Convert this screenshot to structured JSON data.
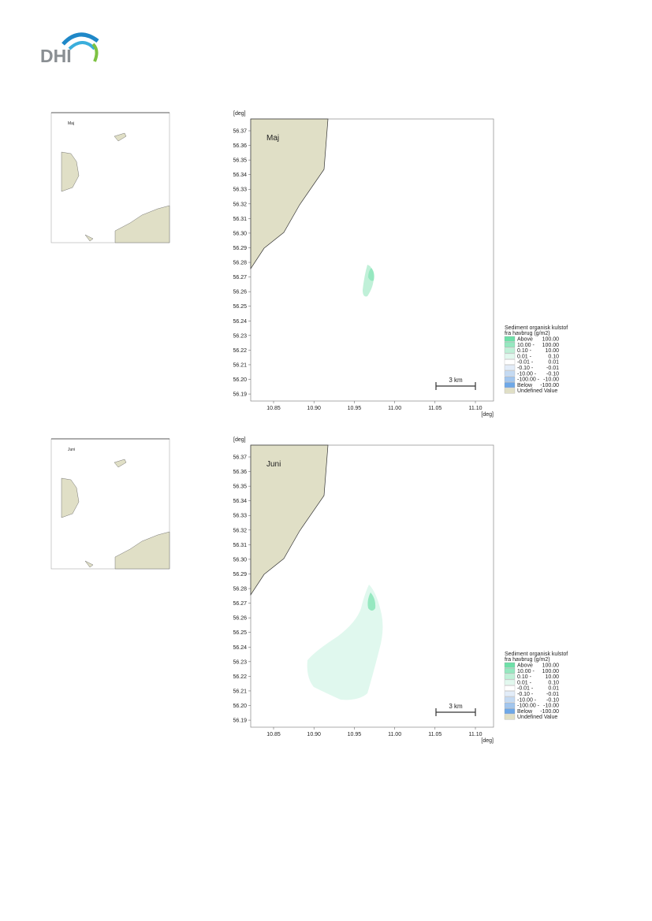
{
  "header": {
    "logo": "DHI"
  },
  "figures": [
    {
      "title": "Maj",
      "y_unit": "[deg]",
      "x_unit": "[deg]",
      "yticks": [
        "56.37",
        "56.36",
        "56.35",
        "56.34",
        "56.33",
        "56.32",
        "56.31",
        "56.30",
        "56.29",
        "56.28",
        "56.27",
        "56.26",
        "56.25",
        "56.24",
        "56.23",
        "56.22",
        "56.21",
        "56.20",
        "56.19"
      ],
      "xticks": [
        "10.85",
        "10.90",
        "10.95",
        "11.00",
        "11.05",
        "11.10"
      ],
      "scale": "3 km",
      "legend": {
        "title": [
          "Sediment organisk kulstof",
          "fra havbrug (g/m2)"
        ],
        "rows": [
          {
            "color": "#6ee0a8",
            "from": "Above",
            "to": "100.00"
          },
          {
            "color": "#96e8c0",
            "from": "10.00 -",
            "to": "100.00"
          },
          {
            "color": "#c0f0d8",
            "from": "0.10 -",
            "to": "10.00"
          },
          {
            "color": "#e2f8ee",
            "from": "0.01 -",
            "to": "0.10"
          },
          {
            "color": "#ffffff",
            "from": "-0.01 -",
            "to": "0.01"
          },
          {
            "color": "#e2ecf8",
            "from": "-0.10 -",
            "to": "-0.01"
          },
          {
            "color": "#c4daf2",
            "from": "-10.00 -",
            "to": "-0.10"
          },
          {
            "color": "#a2c6ee",
            "from": "-100.00 -",
            "to": "-10.00"
          },
          {
            "color": "#6ea8e8",
            "from": "Below",
            "to": "-100.00"
          },
          {
            "color": "#e0dfc6",
            "from": "Undefined Value",
            "to": ""
          }
        ]
      }
    },
    {
      "title": "Juni",
      "y_unit": "[deg]",
      "x_unit": "[deg]",
      "yticks": [
        "56.37",
        "56.36",
        "56.35",
        "56.34",
        "56.33",
        "56.32",
        "56.31",
        "56.30",
        "56.29",
        "56.28",
        "56.27",
        "56.26",
        "56.25",
        "56.24",
        "56.23",
        "56.22",
        "56.21",
        "56.20",
        "56.19"
      ],
      "xticks": [
        "10.85",
        "10.90",
        "10.95",
        "11.00",
        "11.05",
        "11.10"
      ],
      "scale": "3 km",
      "legend": {
        "title": [
          "Sediment organisk kulstof",
          "fra havbrug (g/m2)"
        ],
        "rows": [
          {
            "color": "#6ee0a8",
            "from": "Above",
            "to": "100.00"
          },
          {
            "color": "#96e8c0",
            "from": "10.00 -",
            "to": "100.00"
          },
          {
            "color": "#c0f0d8",
            "from": "0.10 -",
            "to": "10.00"
          },
          {
            "color": "#e2f8ee",
            "from": "0.01 -",
            "to": "0.10"
          },
          {
            "color": "#ffffff",
            "from": "-0.01 -",
            "to": "0.01"
          },
          {
            "color": "#e2ecf8",
            "from": "-0.10 -",
            "to": "-0.01"
          },
          {
            "color": "#c4daf2",
            "from": "-10.00 -",
            "to": "-0.10"
          },
          {
            "color": "#a2c6ee",
            "from": "-100.00 -",
            "to": "-10.00"
          },
          {
            "color": "#6ea8e8",
            "from": "Below",
            "to": "-100.00"
          },
          {
            "color": "#e0dfc6",
            "from": "Undefined Value",
            "to": ""
          }
        ]
      }
    }
  ]
}
